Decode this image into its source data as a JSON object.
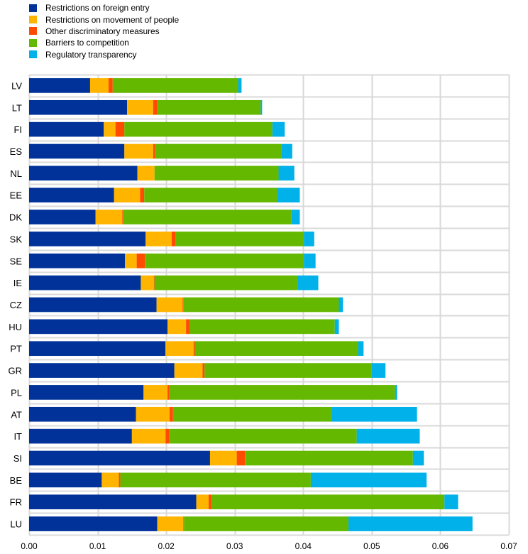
{
  "chart_data": {
    "type": "bar",
    "orientation": "horizontal",
    "stacked": true,
    "title": "",
    "xlabel": "",
    "ylabel": "",
    "xlim": [
      0,
      0.07
    ],
    "xticks": [
      "0.00",
      "0.01",
      "0.02",
      "0.03",
      "0.04",
      "0.05",
      "0.06",
      "0.07"
    ],
    "xtick_values": [
      0,
      0.01,
      0.02,
      0.03,
      0.04,
      0.05,
      0.06,
      0.07
    ],
    "grid": true,
    "legend_position": "top-left",
    "categories": [
      "LV",
      "LT",
      "FI",
      "ES",
      "NL",
      "EE",
      "DK",
      "SK",
      "SE",
      "IE",
      "CZ",
      "HU",
      "PT",
      "GR",
      "PL",
      "AT",
      "IT",
      "SI",
      "BE",
      "FR",
      "LU"
    ],
    "series": [
      {
        "name": "Restrictions on foreign entry",
        "color": "#003299",
        "values": [
          0.0089,
          0.0143,
          0.0109,
          0.0139,
          0.0158,
          0.0124,
          0.0097,
          0.017,
          0.014,
          0.0163,
          0.0186,
          0.0202,
          0.0199,
          0.0212,
          0.0167,
          0.0156,
          0.015,
          0.0264,
          0.0106,
          0.0244,
          0.0187
        ]
      },
      {
        "name": "Restrictions on movement of people",
        "color": "#FFB400",
        "values": [
          0.0027,
          0.0038,
          0.0017,
          0.0042,
          0.0025,
          0.0038,
          0.0039,
          0.0038,
          0.0017,
          0.0019,
          0.0038,
          0.0027,
          0.0041,
          0.0041,
          0.0035,
          0.0049,
          0.0049,
          0.0039,
          0.0025,
          0.0018,
          0.0038
        ]
      },
      {
        "name": "Other discriminatory measures",
        "color": "#FF4B00",
        "values": [
          0.0006,
          0.0006,
          0.0013,
          0.0003,
          0.0,
          0.0006,
          0.0001,
          0.0006,
          0.0012,
          0.0001,
          0.0001,
          0.0005,
          0.0002,
          0.0003,
          0.0002,
          0.0005,
          0.0005,
          0.0012,
          0.0002,
          0.0004,
          0.0001
        ]
      },
      {
        "name": "Barriers to competition",
        "color": "#65B800",
        "values": [
          0.0183,
          0.0151,
          0.0216,
          0.0184,
          0.0181,
          0.0194,
          0.0246,
          0.0187,
          0.0232,
          0.0209,
          0.0227,
          0.0212,
          0.0238,
          0.0244,
          0.033,
          0.0231,
          0.0274,
          0.0245,
          0.0278,
          0.034,
          0.024
        ]
      },
      {
        "name": "Regulatory transparency",
        "color": "#00B1EA",
        "values": [
          0.0005,
          0.0002,
          0.0018,
          0.0016,
          0.0023,
          0.0033,
          0.0012,
          0.0015,
          0.0017,
          0.003,
          0.0006,
          0.0006,
          0.0008,
          0.002,
          0.0003,
          0.0125,
          0.0092,
          0.0016,
          0.0169,
          0.002,
          0.0181
        ]
      }
    ]
  }
}
